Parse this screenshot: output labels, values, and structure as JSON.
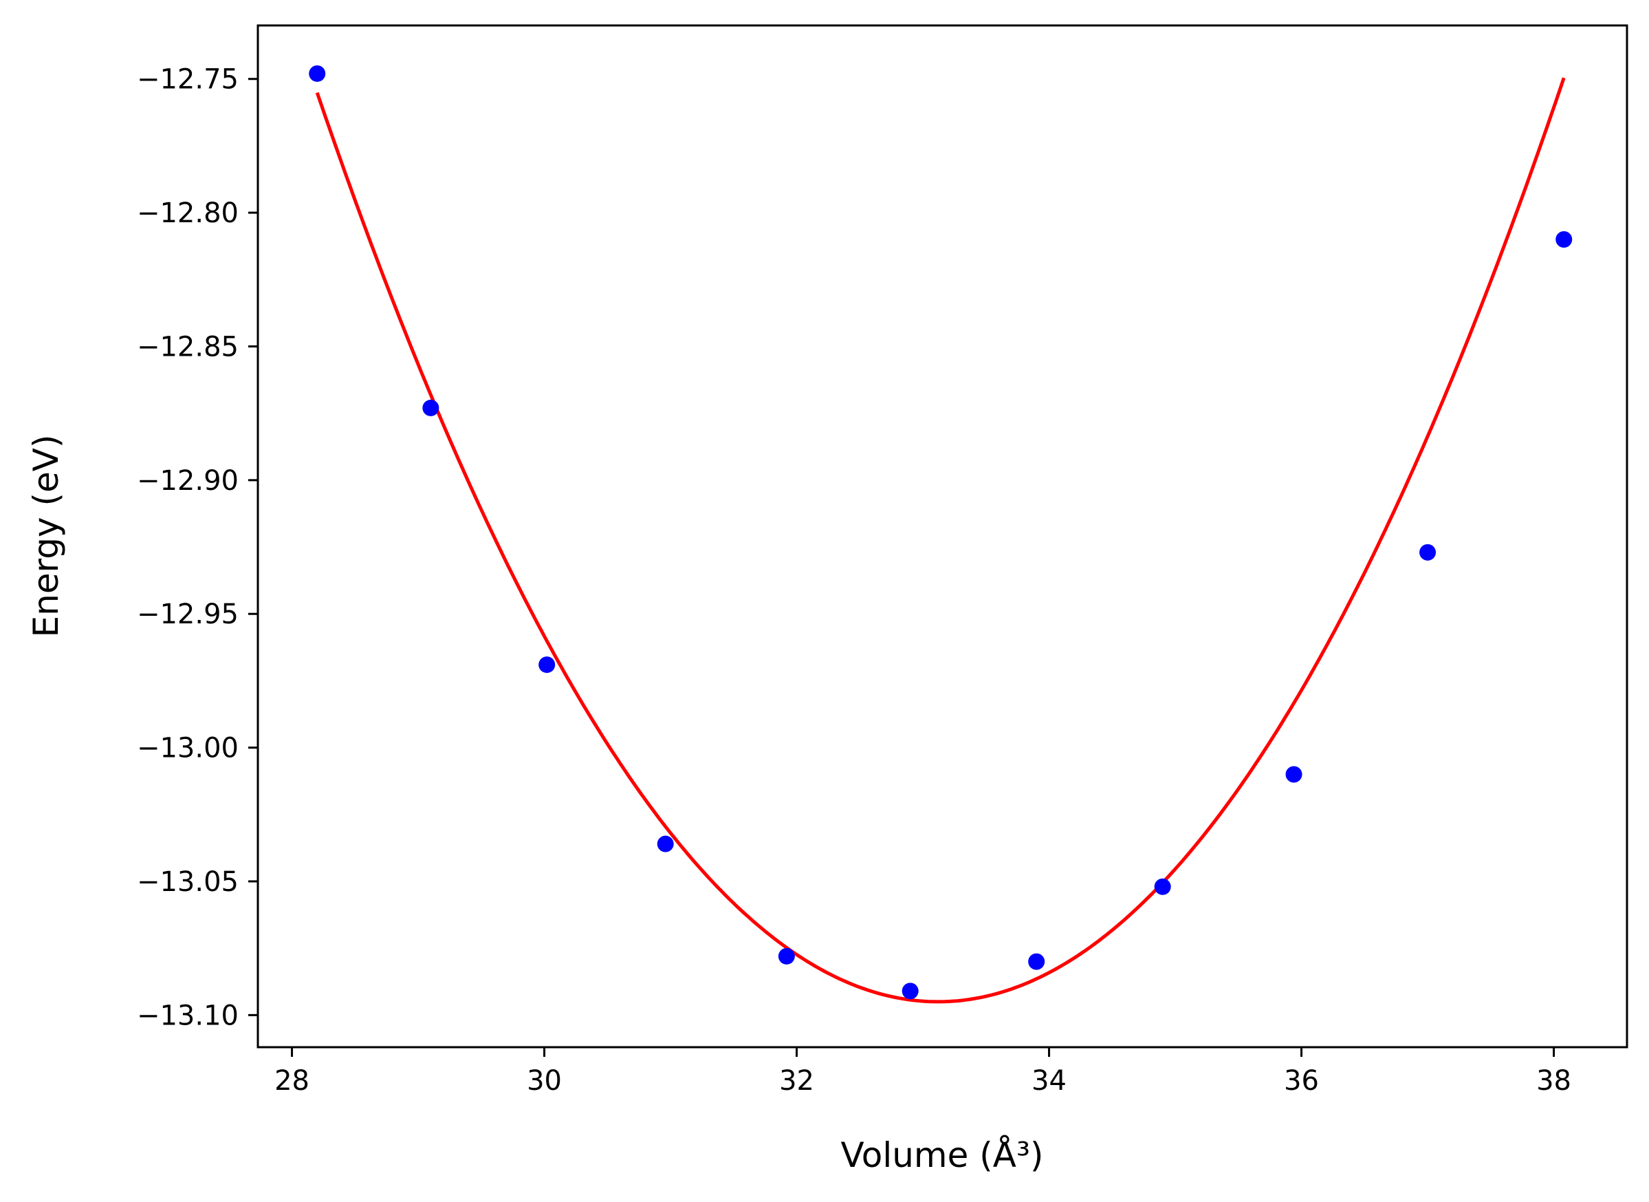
{
  "chart_data": {
    "type": "scatter",
    "title": "",
    "xlabel": "Volume (Å³)",
    "ylabel": "Energy (eV)",
    "xlim": [
      27.73,
      38.58
    ],
    "ylim": [
      -13.112,
      -12.73
    ],
    "xticks": [
      28,
      30,
      32,
      34,
      36,
      38
    ],
    "xtick_labels": [
      "28",
      "30",
      "32",
      "34",
      "36",
      "38"
    ],
    "yticks": [
      -12.75,
      -12.8,
      -12.85,
      -12.9,
      -12.95,
      -13.0,
      -13.05,
      -13.1
    ],
    "ytick_labels": [
      "−12.75",
      "−12.80",
      "−12.85",
      "−12.90",
      "−12.95",
      "−13.00",
      "−13.05",
      "−13.10"
    ],
    "grid": false,
    "legend": "none",
    "series": [
      {
        "kind": "points",
        "color": "#0000ff",
        "x": [
          28.2,
          29.1,
          30.02,
          30.96,
          31.92,
          32.9,
          33.9,
          34.9,
          35.94,
          37.0,
          38.08
        ],
        "y": [
          -12.748,
          -12.873,
          -12.969,
          -13.036,
          -13.078,
          -13.091,
          -13.08,
          -13.052,
          -13.01,
          -12.927,
          -12.81
        ]
      },
      {
        "kind": "line",
        "color": "#ff0000",
        "fit": "quadratic",
        "x_range": [
          28.2,
          38.08
        ],
        "vertex": [
          33.12,
          -13.095
        ],
        "curvature": 0.01404
      }
    ]
  }
}
